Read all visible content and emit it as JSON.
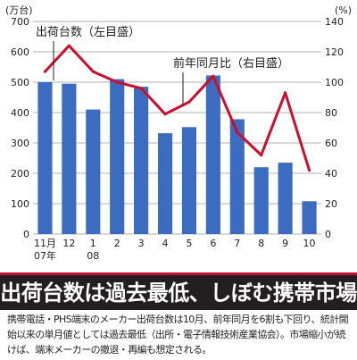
{
  "chart_data": {
    "type": "bar+line",
    "categories": [
      "11月",
      "12",
      "1",
      "2",
      "3",
      "4",
      "5",
      "6",
      "7",
      "8",
      "9",
      "10"
    ],
    "category_sublabels": [
      "07年",
      "",
      "08",
      "",
      "",
      "",
      "",
      "",
      "",
      "",
      "",
      ""
    ],
    "left_axis": {
      "unit": "(万台)",
      "ylim": [
        0,
        700
      ],
      "ticks": [
        "0",
        "100",
        "200",
        "300",
        "400",
        "500",
        "600",
        "700"
      ]
    },
    "right_axis": {
      "unit": "(%)",
      "ylim": [
        0,
        140
      ],
      "ticks": [
        "0",
        "20",
        "40",
        "60",
        "80",
        "100",
        "120",
        "140"
      ]
    },
    "grid": true,
    "series": [
      {
        "name": "出荷台数（左目盛）",
        "type": "bar",
        "axis": "left",
        "color": "#3b6cc0",
        "values": [
          500,
          495,
          410,
          510,
          485,
          332,
          352,
          522,
          378,
          220,
          235,
          108
        ]
      },
      {
        "name": "前年同月比（右目盛）",
        "type": "line",
        "axis": "right",
        "color": "#c8102e",
        "values": [
          107,
          124,
          107,
          100,
          96,
          79,
          87,
          104,
          67,
          52,
          93,
          42
        ]
      }
    ]
  },
  "headline": "出荷台数は過去最低、しぼむ携帯市場",
  "body": "携帯電話・PHS端末のメーカー出荷台数は10月、前年同月を6割も下回り、統計開始以来の単月値としては過去最低（出所・電子情報技術産業協会）。市場縮小が続けば、端末メーカーの撤退・再編も想定される。",
  "colors": {
    "bar": "#3b6cc0",
    "line": "#c8102e",
    "band": "#231f20",
    "band_rule": "#c8102e",
    "text": "#231f20"
  }
}
